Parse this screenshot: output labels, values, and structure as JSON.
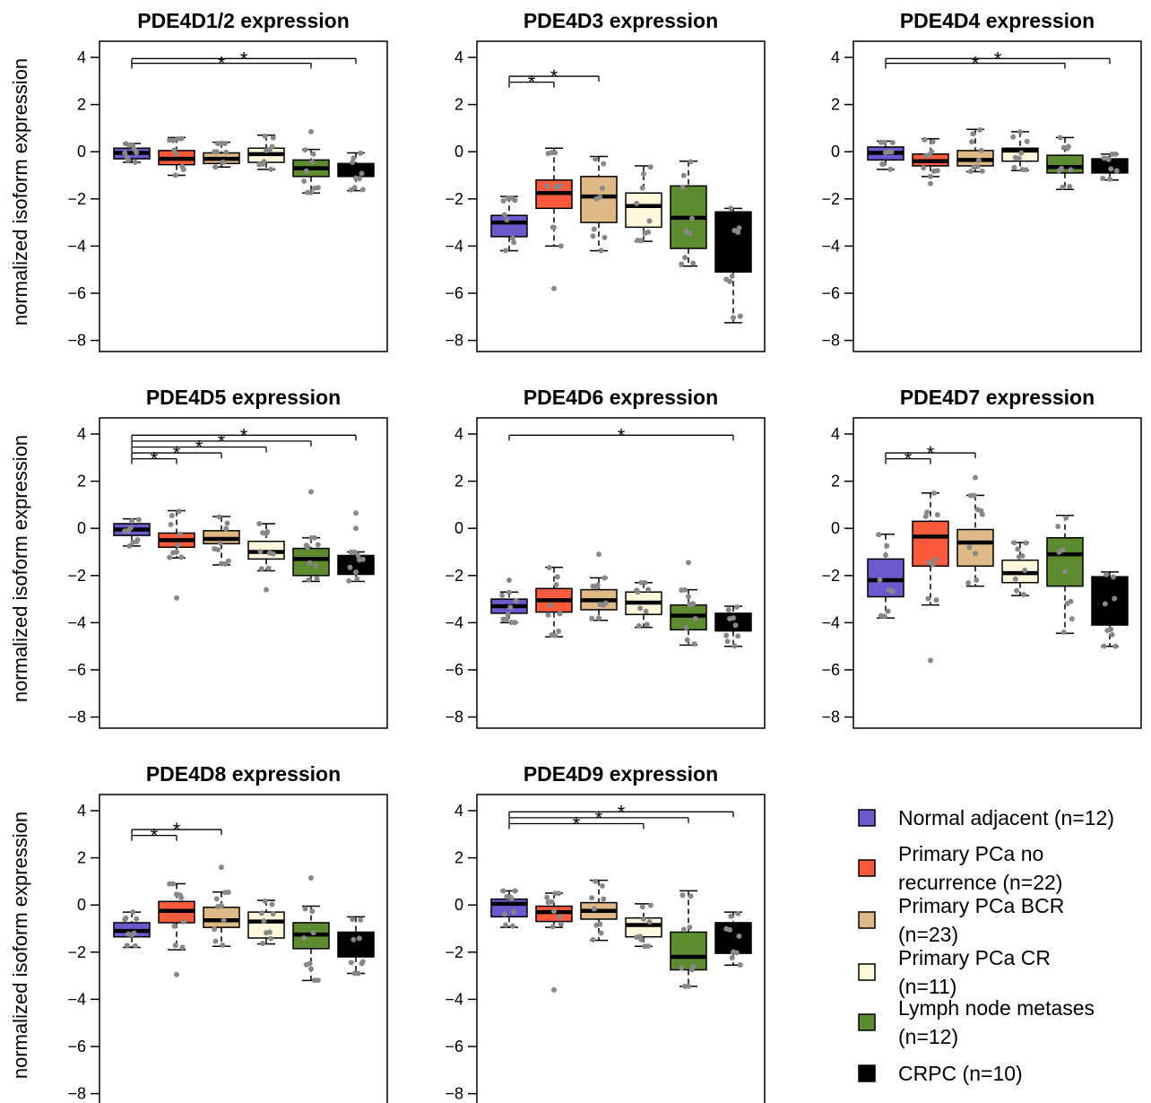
{
  "figure": {
    "ylabel": "normalized isoform expression",
    "ticks": [
      4,
      2,
      0,
      -2,
      -4,
      -6,
      -8
    ],
    "tick_labels": [
      "4",
      "2",
      "0",
      "−2",
      "−4",
      "−6",
      "−8"
    ]
  },
  "legend": [
    {
      "lines": [
        "Normal adjacent (n=12)"
      ],
      "color": "#6a5acd"
    },
    {
      "lines": [
        "Primary PCa no",
        "recurrence (n=22)"
      ],
      "color": "#fb5a3c"
    },
    {
      "lines": [
        "Primary PCa BCR",
        "(n=23)"
      ],
      "color": "#deb887"
    },
    {
      "lines": [
        "Primary PCa CR",
        "(n=11)"
      ],
      "color": "#fff8dc"
    },
    {
      "lines": [
        "Lymph node metases",
        "(n=12)"
      ],
      "color": "#5e8b2f"
    },
    {
      "lines": [
        "CRPC (n=10)"
      ],
      "color": "#000000"
    }
  ],
  "chart_data": [
    {
      "type": "box",
      "title": "PDE4D1/2 expression",
      "ylabel": "normalized isoform expression",
      "ylim": [
        -8.4,
        4.6
      ],
      "groups": [
        {
          "q1": -0.3,
          "median": -0.05,
          "q3": 0.15,
          "lower": -0.45,
          "upper": 0.35,
          "outliers": []
        },
        {
          "q1": -0.55,
          "median": -0.3,
          "q3": 0.05,
          "lower": -1.0,
          "upper": 0.6,
          "outliers": []
        },
        {
          "q1": -0.5,
          "median": -0.3,
          "q3": -0.05,
          "lower": -0.65,
          "upper": 0.4,
          "outliers": []
        },
        {
          "q1": -0.45,
          "median": -0.1,
          "q3": 0.15,
          "lower": -0.75,
          "upper": 0.7,
          "outliers": []
        },
        {
          "q1": -1.05,
          "median": -0.7,
          "q3": -0.35,
          "lower": -1.75,
          "upper": 0.1,
          "outliers": [
            0.85
          ]
        },
        {
          "q1": -1.05,
          "median": -0.9,
          "q3": -0.5,
          "lower": -1.65,
          "upper": -0.05,
          "outliers": []
        }
      ],
      "significance": [
        {
          "from": 1,
          "to": 5,
          "y": 3.75
        },
        {
          "from": 1,
          "to": 6,
          "y": 3.95
        }
      ]
    },
    {
      "type": "box",
      "title": "PDE4D3 expression",
      "ylabel": "",
      "ylim": [
        -8.4,
        4.6
      ],
      "groups": [
        {
          "q1": -3.6,
          "median": -3.0,
          "q3": -2.7,
          "lower": -4.2,
          "upper": -1.9,
          "outliers": []
        },
        {
          "q1": -2.4,
          "median": -1.75,
          "q3": -1.2,
          "lower": -4.0,
          "upper": 0.15,
          "outliers": [
            -5.8
          ]
        },
        {
          "q1": -3.0,
          "median": -1.9,
          "q3": -1.05,
          "lower": -4.2,
          "upper": -0.2,
          "outliers": []
        },
        {
          "q1": -3.2,
          "median": -2.3,
          "q3": -1.75,
          "lower": -3.8,
          "upper": -0.6,
          "outliers": []
        },
        {
          "q1": -4.1,
          "median": -2.8,
          "q3": -1.45,
          "lower": -4.85,
          "upper": -0.4,
          "outliers": []
        },
        {
          "q1": -5.1,
          "median": -3.95,
          "q3": -2.55,
          "lower": -7.25,
          "upper": -2.4,
          "outliers": []
        }
      ],
      "significance": [
        {
          "from": 1,
          "to": 2,
          "y": 2.95
        },
        {
          "from": 1,
          "to": 3,
          "y": 3.2
        }
      ]
    },
    {
      "type": "box",
      "title": "PDE4D4 expression",
      "ylabel": "",
      "ylim": [
        -8.4,
        4.6
      ],
      "groups": [
        {
          "q1": -0.35,
          "median": -0.05,
          "q3": 0.2,
          "lower": -0.75,
          "upper": 0.45,
          "outliers": []
        },
        {
          "q1": -0.6,
          "median": -0.4,
          "q3": -0.1,
          "lower": -1.05,
          "upper": 0.55,
          "outliers": [
            -1.35
          ]
        },
        {
          "q1": -0.6,
          "median": -0.35,
          "q3": 0.05,
          "lower": -0.85,
          "upper": 0.95,
          "outliers": []
        },
        {
          "q1": -0.4,
          "median": 0.05,
          "q3": 0.15,
          "lower": -0.8,
          "upper": 0.85,
          "outliers": []
        },
        {
          "q1": -0.9,
          "median": -0.65,
          "q3": -0.15,
          "lower": -1.6,
          "upper": 0.6,
          "outliers": []
        },
        {
          "q1": -0.9,
          "median": -0.6,
          "q3": -0.3,
          "lower": -1.2,
          "upper": -0.1,
          "outliers": []
        }
      ],
      "significance": [
        {
          "from": 1,
          "to": 5,
          "y": 3.75
        },
        {
          "from": 1,
          "to": 6,
          "y": 3.95
        }
      ]
    },
    {
      "type": "box",
      "title": "PDE4D5 expression",
      "ylabel": "normalized isoform expression",
      "ylim": [
        -8.4,
        4.6
      ],
      "groups": [
        {
          "q1": -0.3,
          "median": -0.05,
          "q3": 0.2,
          "lower": -0.75,
          "upper": 0.4,
          "outliers": []
        },
        {
          "q1": -0.8,
          "median": -0.5,
          "q3": -0.2,
          "lower": -1.25,
          "upper": 0.75,
          "outliers": [
            -2.95
          ]
        },
        {
          "q1": -0.65,
          "median": -0.45,
          "q3": -0.1,
          "lower": -1.55,
          "upper": 0.5,
          "outliers": []
        },
        {
          "q1": -1.3,
          "median": -1.0,
          "q3": -0.55,
          "lower": -1.8,
          "upper": 0.2,
          "outliers": [
            -2.6
          ]
        },
        {
          "q1": -2.0,
          "median": -1.3,
          "q3": -0.85,
          "lower": -2.25,
          "upper": -0.4,
          "outliers": [
            1.55
          ]
        },
        {
          "q1": -1.95,
          "median": -1.5,
          "q3": -1.15,
          "lower": -2.25,
          "upper": -1.0,
          "outliers": [
            0.65,
            0.0
          ]
        }
      ],
      "significance": [
        {
          "from": 1,
          "to": 2,
          "y": 2.95
        },
        {
          "from": 1,
          "to": 3,
          "y": 3.2
        },
        {
          "from": 1,
          "to": 4,
          "y": 3.45
        },
        {
          "from": 1,
          "to": 5,
          "y": 3.7
        },
        {
          "from": 1,
          "to": 6,
          "y": 3.95
        }
      ]
    },
    {
      "type": "box",
      "title": "PDE4D6 expression",
      "ylabel": "",
      "ylim": [
        -8.4,
        4.6
      ],
      "groups": [
        {
          "q1": -3.6,
          "median": -3.3,
          "q3": -3.0,
          "lower": -4.0,
          "upper": -2.7,
          "outliers": [
            -2.2
          ]
        },
        {
          "q1": -3.55,
          "median": -3.05,
          "q3": -2.55,
          "lower": -4.6,
          "upper": -1.65,
          "outliers": []
        },
        {
          "q1": -3.45,
          "median": -3.05,
          "q3": -2.6,
          "lower": -3.9,
          "upper": -2.1,
          "outliers": [
            -1.1
          ]
        },
        {
          "q1": -3.65,
          "median": -3.15,
          "q3": -2.7,
          "lower": -4.2,
          "upper": -2.3,
          "outliers": []
        },
        {
          "q1": -4.3,
          "median": -3.7,
          "q3": -3.25,
          "lower": -4.95,
          "upper": -2.6,
          "outliers": [
            -1.45
          ]
        },
        {
          "q1": -4.35,
          "median": -3.9,
          "q3": -3.6,
          "lower": -5.0,
          "upper": -3.3,
          "outliers": []
        }
      ],
      "significance": [
        {
          "from": 1,
          "to": 6,
          "y": 3.95
        }
      ]
    },
    {
      "type": "box",
      "title": "PDE4D7 expression",
      "ylabel": "",
      "ylim": [
        -8.4,
        4.6
      ],
      "groups": [
        {
          "q1": -2.9,
          "median": -2.2,
          "q3": -1.3,
          "lower": -3.8,
          "upper": -0.25,
          "outliers": []
        },
        {
          "q1": -1.6,
          "median": -0.35,
          "q3": 0.3,
          "lower": -3.25,
          "upper": 1.5,
          "outliers": [
            -5.6
          ]
        },
        {
          "q1": -1.6,
          "median": -0.6,
          "q3": -0.05,
          "lower": -2.45,
          "upper": 1.4,
          "outliers": [
            2.15
          ]
        },
        {
          "q1": -2.3,
          "median": -1.9,
          "q3": -1.35,
          "lower": -2.85,
          "upper": -0.6,
          "outliers": []
        },
        {
          "q1": -2.45,
          "median": -1.1,
          "q3": -0.4,
          "lower": -4.45,
          "upper": 0.55,
          "outliers": []
        },
        {
          "q1": -4.1,
          "median": -3.1,
          "q3": -2.05,
          "lower": -5.0,
          "upper": -1.85,
          "outliers": []
        }
      ],
      "significance": [
        {
          "from": 1,
          "to": 2,
          "y": 2.95
        },
        {
          "from": 1,
          "to": 3,
          "y": 3.2
        }
      ]
    },
    {
      "type": "box",
      "title": "PDE4D8 expression",
      "ylabel": "normalized isoform expression",
      "ylim": [
        -8.4,
        4.6
      ],
      "groups": [
        {
          "q1": -1.35,
          "median": -1.1,
          "q3": -0.75,
          "lower": -1.8,
          "upper": -0.3,
          "outliers": []
        },
        {
          "q1": -0.75,
          "median": -0.25,
          "q3": 0.15,
          "lower": -1.9,
          "upper": 0.9,
          "outliers": [
            -2.95
          ]
        },
        {
          "q1": -0.95,
          "median": -0.65,
          "q3": -0.1,
          "lower": -1.75,
          "upper": 0.55,
          "outliers": [
            1.6
          ]
        },
        {
          "q1": -1.4,
          "median": -0.7,
          "q3": -0.3,
          "lower": -1.65,
          "upper": 0.2,
          "outliers": []
        },
        {
          "q1": -1.85,
          "median": -1.25,
          "q3": -0.75,
          "lower": -3.2,
          "upper": -0.05,
          "outliers": [
            1.15
          ]
        },
        {
          "q1": -2.2,
          "median": -1.6,
          "q3": -1.15,
          "lower": -2.9,
          "upper": -0.5,
          "outliers": []
        }
      ],
      "significance": [
        {
          "from": 1,
          "to": 2,
          "y": 2.95
        },
        {
          "from": 1,
          "to": 3,
          "y": 3.2
        }
      ]
    },
    {
      "type": "box",
      "title": "PDE4D9 expression",
      "ylabel": "",
      "ylim": [
        -8.4,
        4.6
      ],
      "groups": [
        {
          "q1": -0.5,
          "median": 0.05,
          "q3": 0.25,
          "lower": -0.95,
          "upper": 0.6,
          "outliers": []
        },
        {
          "q1": -0.7,
          "median": -0.3,
          "q3": -0.05,
          "lower": -0.95,
          "upper": 0.5,
          "outliers": [
            -3.6
          ]
        },
        {
          "q1": -0.6,
          "median": -0.25,
          "q3": 0.1,
          "lower": -1.5,
          "upper": 1.05,
          "outliers": []
        },
        {
          "q1": -1.35,
          "median": -0.85,
          "q3": -0.55,
          "lower": -1.75,
          "upper": 0.05,
          "outliers": []
        },
        {
          "q1": -2.75,
          "median": -2.2,
          "q3": -1.15,
          "lower": -3.45,
          "upper": 0.6,
          "outliers": []
        },
        {
          "q1": -2.05,
          "median": -1.35,
          "q3": -0.75,
          "lower": -2.55,
          "upper": -0.3,
          "outliers": []
        }
      ],
      "significance": [
        {
          "from": 1,
          "to": 4,
          "y": 3.45
        },
        {
          "from": 1,
          "to": 5,
          "y": 3.7
        },
        {
          "from": 1,
          "to": 6,
          "y": 3.95
        }
      ]
    }
  ]
}
